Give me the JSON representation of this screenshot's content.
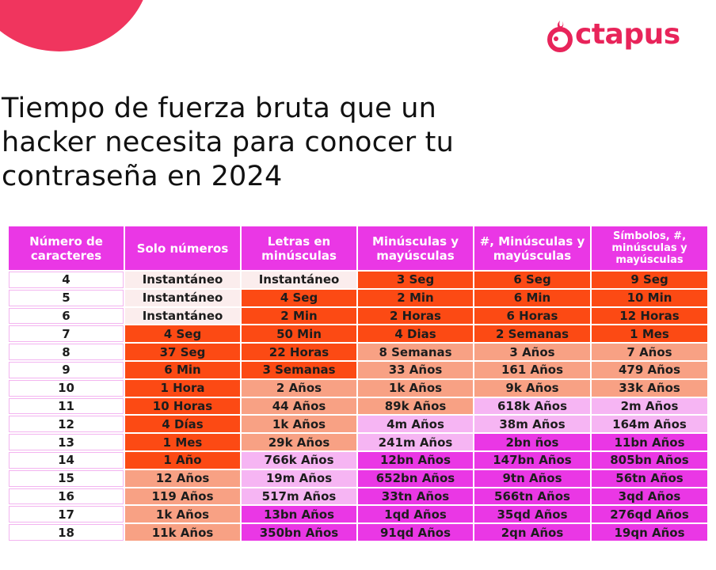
{
  "brand": {
    "name": "ctapus",
    "accent": "#e8245a"
  },
  "headline": {
    "line1": "Tiempo de fuerza bruta que un",
    "line2": "hacker necesita para conocer tu",
    "line3": "contraseña en 2024"
  },
  "table": {
    "headers": [
      "Número de caracteres",
      "Solo números",
      "Letras en minúsculas",
      "Minúsculas y mayúsculas",
      "#, Minúsculas y mayúsculas",
      "Símbolos, #, minúsculas y mayúsculas"
    ],
    "rows": [
      {
        "chars": "4",
        "cells": [
          "Instantáneo",
          "Instantáneo",
          "3 Seg",
          "6 Seg",
          "9 Seg"
        ]
      },
      {
        "chars": "5",
        "cells": [
          "Instantáneo",
          "4 Seg",
          "2 Min",
          "6 Min",
          "10 Min"
        ]
      },
      {
        "chars": "6",
        "cells": [
          "Instantáneo",
          "2 Min",
          "2 Horas",
          "6 Horas",
          "12 Horas"
        ]
      },
      {
        "chars": "7",
        "cells": [
          "4 Seg",
          "50 Min",
          "4 Dias",
          "2 Semanas",
          "1 Mes"
        ]
      },
      {
        "chars": "8",
        "cells": [
          "37 Seg",
          "22 Horas",
          "8 Semanas",
          "3 Años",
          "7 Años"
        ]
      },
      {
        "chars": "9",
        "cells": [
          "6 Min",
          "3 Semanas",
          "33 Años",
          "161 Años",
          "479 Años"
        ]
      },
      {
        "chars": "10",
        "cells": [
          "1 Hora",
          "2 Años",
          "1k Años",
          "9k Años",
          "33k Años"
        ]
      },
      {
        "chars": "11",
        "cells": [
          "10 Horas",
          "44 Años",
          "89k Años",
          "618k Años",
          "2m Años"
        ]
      },
      {
        "chars": "12",
        "cells": [
          "4 Días",
          "1k Años",
          "4m Años",
          "38m Años",
          "164m Años"
        ]
      },
      {
        "chars": "13",
        "cells": [
          "1 Mes",
          "29k Años",
          "241m Años",
          "2bn ños",
          "11bn Años"
        ]
      },
      {
        "chars": "14",
        "cells": [
          "1 Año",
          "766k Años",
          "12bn Años",
          "147bn Años",
          "805bn Años"
        ]
      },
      {
        "chars": "15",
        "cells": [
          "12 Años",
          "19m Años",
          "652bn Años",
          "9tn Años",
          "56tn Años"
        ]
      },
      {
        "chars": "16",
        "cells": [
          "119 Años",
          "517m Años",
          "33tn Años",
          "566tn Años",
          "3qd Años"
        ]
      },
      {
        "chars": "17",
        "cells": [
          "1k Años",
          "13bn Años",
          "1qd Años",
          "35qd Años",
          "276qd Años"
        ]
      },
      {
        "chars": "18",
        "cells": [
          "11k Años",
          "350bn Años",
          "91qd Años",
          "2qn Años",
          "19qn Años"
        ]
      }
    ]
  },
  "colors": {
    "instant": "#fbeded",
    "orange": "#fc4a14",
    "salmon": "#f8a184",
    "light_pink": "#f6b5f3",
    "magenta": "#ea37e5"
  }
}
